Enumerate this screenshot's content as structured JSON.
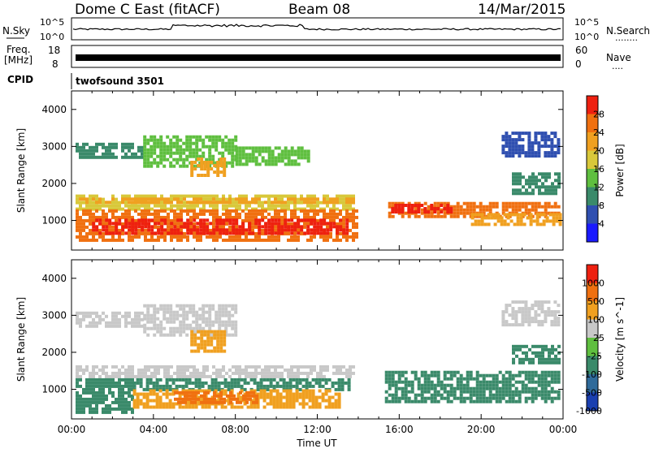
{
  "header": {
    "station": "Dome C East (fitACF)",
    "beam": "Beam 08",
    "date": "14/Mar/2015"
  },
  "status_panels": {
    "nsky_label": "N.Sky",
    "nsky_ticks": [
      "10^5",
      "10^0"
    ],
    "nsearch_label": "N.Search",
    "nsearch_dots": "........",
    "freq_label_1": "Freq.",
    "freq_label_2": "[MHz]",
    "freq_ticks": [
      "18",
      "8"
    ],
    "nave_label": "Nave",
    "nave_ticks": [
      "60",
      "0"
    ],
    "nave_dots": "....",
    "cpid_label": "CPID",
    "cpid_value": "twofsound 3501"
  },
  "chart_data": [
    {
      "type": "heatmap",
      "name": "power",
      "xlabel": "",
      "ylabel": "Slant Range [km]",
      "x_ticks": [
        "00:00",
        "04:00",
        "08:00",
        "12:00",
        "16:00",
        "20:00",
        "00:00"
      ],
      "y_ticks": [
        "1000",
        "2000",
        "3000",
        "4000"
      ],
      "ylim": [
        200,
        4500
      ],
      "xlim_hours": [
        0,
        24
      ],
      "colorbar": {
        "label": "Power [dB]",
        "ticks": [
          "4",
          "8",
          "12",
          "16",
          "20",
          "24",
          "28"
        ],
        "colors": [
          "#1a1aff",
          "#2f4fb0",
          "#3a8a6a",
          "#5fbf3f",
          "#d8c83a",
          "#f0a020",
          "#f07010",
          "#ee2010"
        ]
      },
      "bands": [
        {
          "t0": 0.2,
          "t1": 3.5,
          "r0": 2700,
          "r1": 3100,
          "color": "#3a8a6a"
        },
        {
          "t0": 3.5,
          "t1": 8.0,
          "r0": 2500,
          "r1": 3300,
          "color": "#5fbf3f"
        },
        {
          "t0": 5.8,
          "t1": 7.5,
          "r0": 2200,
          "r1": 2700,
          "color": "#f0a020"
        },
        {
          "t0": 8.0,
          "t1": 11.5,
          "r0": 2500,
          "r1": 3000,
          "color": "#5fbf3f"
        },
        {
          "t0": 0.2,
          "t1": 13.8,
          "r0": 1300,
          "r1": 1700,
          "color": "#d8c83a"
        },
        {
          "t0": 0.2,
          "t1": 13.8,
          "r0": 1450,
          "r1": 1620,
          "color": "#f0a020"
        },
        {
          "t0": 0.2,
          "t1": 14.0,
          "r0": 500,
          "r1": 1300,
          "color": "#f07010"
        },
        {
          "t0": 1.0,
          "t1": 13.5,
          "r0": 650,
          "r1": 1050,
          "color": "#ee2010"
        },
        {
          "t0": 15.3,
          "t1": 23.8,
          "r0": 1100,
          "r1": 1500,
          "color": "#f07010"
        },
        {
          "t0": 15.6,
          "t1": 18.5,
          "r0": 1250,
          "r1": 1450,
          "color": "#ee2010"
        },
        {
          "t0": 19.5,
          "t1": 23.8,
          "r0": 900,
          "r1": 1200,
          "color": "#f0a020"
        },
        {
          "t0": 21.0,
          "t1": 23.8,
          "r0": 2700,
          "r1": 3400,
          "color": "#2f4fb0"
        },
        {
          "t0": 21.5,
          "t1": 23.8,
          "r0": 1700,
          "r1": 2300,
          "color": "#3a8a6a"
        }
      ]
    },
    {
      "type": "heatmap",
      "name": "velocity",
      "xlabel": "Time UT",
      "ylabel": "Slant Range [km]",
      "x_ticks": [
        "00:00",
        "04:00",
        "08:00",
        "12:00",
        "16:00",
        "20:00",
        "00:00"
      ],
      "y_ticks": [
        "1000",
        "2000",
        "3000",
        "4000"
      ],
      "ylim": [
        200,
        4500
      ],
      "xlim_hours": [
        0,
        24
      ],
      "colorbar": {
        "label": "Velocity [m s^-1]",
        "ticks": [
          "1000",
          "500",
          "100",
          "25",
          "-25",
          "-100",
          "-500",
          "-1000"
        ],
        "colors": [
          "#1a3fb0",
          "#2f6a9a",
          "#3a8a6a",
          "#5fbf3f",
          "#c8c8c8",
          "#f0a020",
          "#f07010",
          "#ee2010"
        ]
      },
      "bands": [
        {
          "t0": 0.2,
          "t1": 3.5,
          "r0": 2700,
          "r1": 3100,
          "color": "#c8c8c8"
        },
        {
          "t0": 3.5,
          "t1": 8.0,
          "r0": 2500,
          "r1": 3300,
          "color": "#c8c8c8"
        },
        {
          "t0": 5.8,
          "t1": 7.5,
          "r0": 2000,
          "r1": 2600,
          "color": "#f0a020"
        },
        {
          "t0": 0.2,
          "t1": 13.8,
          "r0": 1300,
          "r1": 1650,
          "color": "#c8c8c8"
        },
        {
          "t0": 0.2,
          "t1": 3.0,
          "r0": 400,
          "r1": 1300,
          "color": "#3a8a6a"
        },
        {
          "t0": 3.0,
          "t1": 13.5,
          "r0": 1000,
          "r1": 1300,
          "color": "#3a8a6a"
        },
        {
          "t0": 3.0,
          "t1": 13.0,
          "r0": 500,
          "r1": 1000,
          "color": "#f0a020"
        },
        {
          "t0": 5.0,
          "t1": 9.0,
          "r0": 600,
          "r1": 950,
          "color": "#f07010"
        },
        {
          "t0": 15.3,
          "t1": 23.8,
          "r0": 700,
          "r1": 1500,
          "color": "#3a8a6a"
        },
        {
          "t0": 21.0,
          "t1": 23.8,
          "r0": 2700,
          "r1": 3400,
          "color": "#c8c8c8"
        },
        {
          "t0": 21.5,
          "t1": 23.8,
          "r0": 1700,
          "r1": 2200,
          "color": "#3a8a6a"
        }
      ]
    }
  ]
}
